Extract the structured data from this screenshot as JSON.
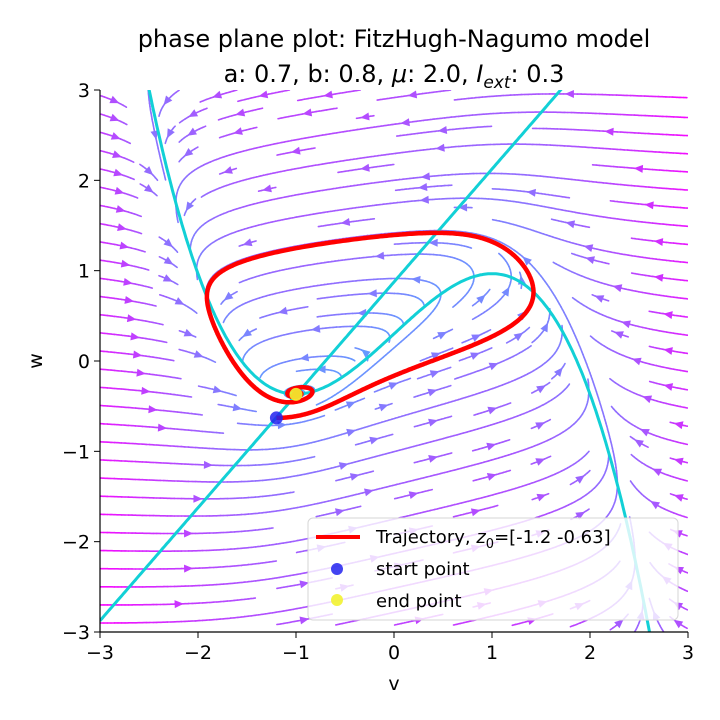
{
  "chart_data": {
    "type": "streamplot",
    "title_line1": "phase plane plot: FitzHugh-Nagumo model",
    "title_line2": {
      "a_text": "a: 0.7, b: 0.8, ",
      "mu_symbol": "μ",
      "mu_text": ": 2.0, ",
      "iext_symbol": "I",
      "iext_sub": "ext",
      "iext_text": ": 0.3"
    },
    "params": {
      "a": 0.7,
      "b": 0.8,
      "mu": 2.0,
      "I_ext": 0.3
    },
    "xlabel": "v",
    "ylabel": "w",
    "xlim": [
      -3,
      3
    ],
    "ylim": [
      -3,
      3
    ],
    "xticks": [
      -3,
      -2,
      -1,
      0,
      1,
      2,
      3
    ],
    "yticks": [
      -3,
      -2,
      -1,
      0,
      1,
      2,
      3
    ],
    "xtick_labels": [
      "−3",
      "−2",
      "−1",
      "0",
      "1",
      "2",
      "3"
    ],
    "ytick_labels": [
      "−3",
      "−2",
      "−1",
      "0",
      "1",
      "2",
      "3"
    ],
    "grid": false,
    "colormap": "cool (colored by speed)",
    "nullcline_color": "#12d0d6",
    "trajectory": {
      "color": "#ff0000",
      "start": [
        -1.2,
        -0.63
      ],
      "end": [
        -1.0,
        -0.37
      ],
      "start_color": "#2222ee",
      "end_color": "#f2f230"
    },
    "legend": {
      "position": "lower right",
      "trajectory_prefix": "Trajectory, ",
      "z_symbol": "z",
      "z_sub": "0",
      "trajectory_value": "=[-1.2  -0.63]",
      "start_label": "start point",
      "end_label": "end point"
    }
  }
}
